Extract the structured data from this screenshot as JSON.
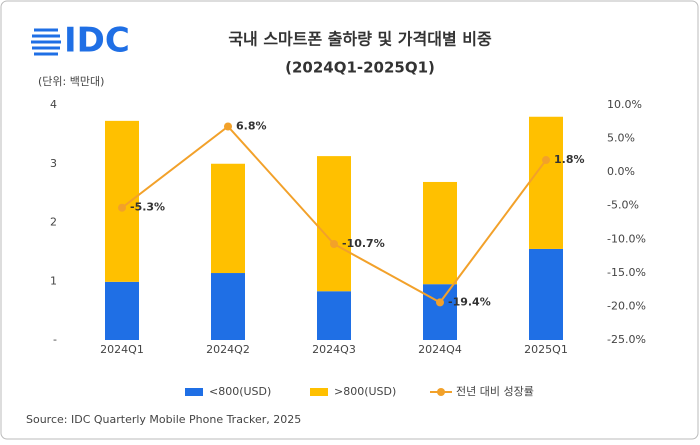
{
  "logo": "IDC",
  "chart_data": {
    "type": "bar-line",
    "title": "국내 스마트폰 출하량 및 가격대별 비중",
    "subtitle": "(2024Q1-2025Q1)",
    "unit_label": "(단위: 백만대)",
    "source": "Source: IDC Quarterly Mobile Phone Tracker, 2025",
    "categories": [
      "2024Q1",
      "2024Q2",
      "2024Q3",
      "2024Q4",
      "2025Q1"
    ],
    "ylim": [
      0,
      4
    ],
    "yticks": [
      {
        "value": 0,
        "label": "-"
      },
      1,
      2,
      3,
      4
    ],
    "y2lim": [
      -25,
      10
    ],
    "y2ticks": [
      {
        "value": 10,
        "label": "10.0%"
      },
      {
        "value": 5,
        "label": "5.0%"
      },
      {
        "value": 0,
        "label": "0.0%"
      },
      {
        "value": -5,
        "label": "-5.0%"
      },
      {
        "value": -10,
        "label": "-10.0%"
      },
      {
        "value": -15,
        "label": "-15.0%"
      },
      {
        "value": -20,
        "label": "-20.0%"
      },
      {
        "value": -25,
        "label": "-25.0%"
      }
    ],
    "series": [
      {
        "name": "<800(USD)",
        "type": "bar",
        "color": "#1f6fe5",
        "values": [
          0.99,
          1.14,
          0.83,
          0.95,
          1.55
        ]
      },
      {
        "name": ">800(USD)",
        "type": "bar",
        "color": "#ffc000",
        "values": [
          2.74,
          1.86,
          2.3,
          1.74,
          2.25
        ]
      },
      {
        "name": "전년 대비 성장률",
        "type": "line",
        "axis": "y2",
        "color": "#f2a12a",
        "values": [
          -5.3,
          6.8,
          -10.7,
          -19.4,
          1.8
        ],
        "value_labels": [
          "-5.3%",
          "6.8%",
          "-10.7%",
          "-19.4%",
          "1.8%"
        ]
      }
    ]
  }
}
